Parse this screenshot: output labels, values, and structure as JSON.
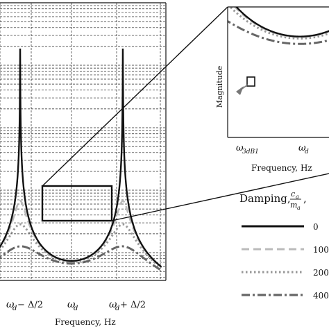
{
  "chart_data": [
    {
      "type": "line",
      "panel": "main",
      "xlabel": "Frequency, Hz",
      "ylabel": "",
      "xticks": [
        {
          "label_main": "ω",
          "label_sub": "d",
          "label_suffix": " − Δ/2",
          "x": -1
        },
        {
          "label_main": "ω",
          "label_sub": "d",
          "label_suffix": "",
          "x": 0
        },
        {
          "label_main": "ω",
          "label_sub": "d",
          "label_suffix": " + Δ/2",
          "x": 1
        }
      ],
      "xlim": [
        -1.75,
        1.75
      ],
      "scale_y": "log",
      "grid": true,
      "series": [
        {
          "name": "0",
          "style": "solid",
          "color": "#111111",
          "damping": 0.0008
        },
        {
          "name": "100",
          "style": "dashed",
          "color": "#bbbbbb",
          "damping": 0.1
        },
        {
          "name": "200",
          "style": "dotted",
          "color": "#999999",
          "damping": 0.2
        },
        {
          "name": "400",
          "style": "dashdot",
          "color": "#666666",
          "damping": 0.4
        }
      ]
    },
    {
      "type": "line",
      "panel": "zoom",
      "xlabel": "Frequency, Hz",
      "ylabel": "Magnitude",
      "xticks": [
        {
          "label_main": "ω",
          "label_sub": "3dB1",
          "x": -0.55
        },
        {
          "label_main": "ω",
          "label_sub": "d",
          "x": 0
        }
      ],
      "annotations": [
        "3dB point marker",
        "arrow"
      ]
    }
  ],
  "legend": {
    "title_prefix": "Damping, ",
    "title_fraction_num": "c",
    "title_fraction_num_sub": "a",
    "title_fraction_den": "m",
    "title_fraction_den_sub": "a",
    "title_suffix": ",",
    "entries": [
      "0",
      "100",
      "200",
      "400"
    ]
  }
}
